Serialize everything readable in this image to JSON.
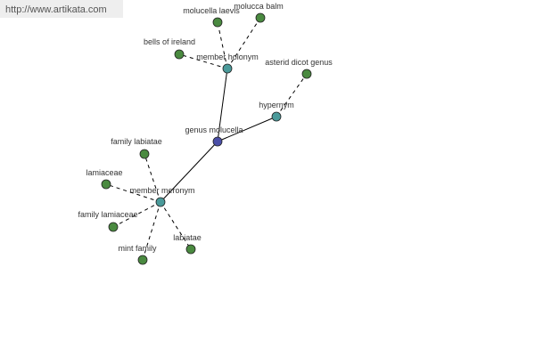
{
  "watermark": "http://www.artikata.com",
  "nodes": [
    {
      "label": "genus molucella"
    },
    {
      "label": "member holonym"
    },
    {
      "label": "hypernym"
    },
    {
      "label": "member meronym"
    },
    {
      "label": "molucella laevis"
    },
    {
      "label": "molucca balm"
    },
    {
      "label": "bells of ireland"
    },
    {
      "label": "asterid dicot genus"
    },
    {
      "label": "family labiatae"
    },
    {
      "label": "lamiaceae"
    },
    {
      "label": "family lamiaceae"
    },
    {
      "label": "mint family"
    },
    {
      "label": "labiatae"
    }
  ]
}
